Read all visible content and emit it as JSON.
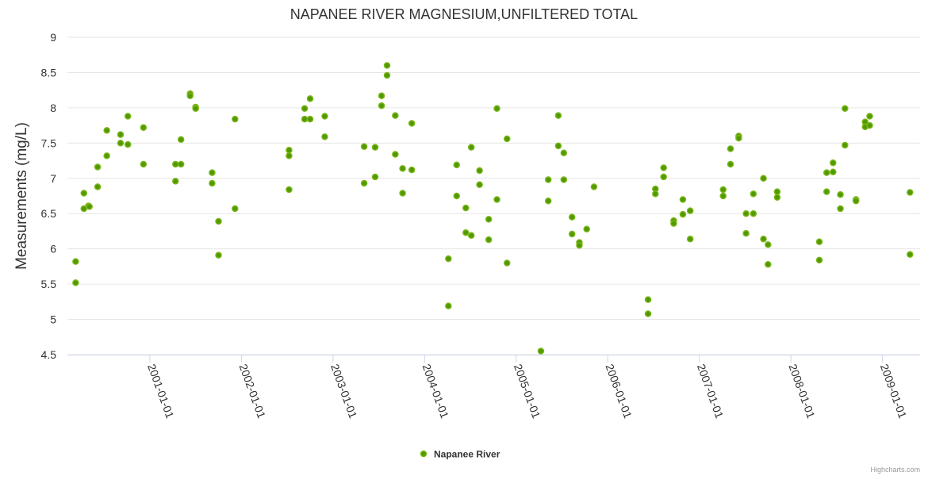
{
  "chart_data": {
    "type": "scatter",
    "title": "NAPANEE RIVER MAGNESIUM,UNFILTERED TOTAL",
    "xlabel": "",
    "ylabel": "Measurements (mg/L)",
    "xlim": [
      2000.1,
      2009.41
    ],
    "ylim": [
      4.5,
      9
    ],
    "yticks": [
      "4.5",
      "5",
      "5.5",
      "6",
      "6.5",
      "7",
      "7.5",
      "8",
      "8.5",
      "9"
    ],
    "xticks": [
      {
        "year": 2001,
        "label": "2001-01-01"
      },
      {
        "year": 2002,
        "label": "2002-01-01"
      },
      {
        "year": 2003,
        "label": "2003-01-01"
      },
      {
        "year": 2004,
        "label": "2004-01-01"
      },
      {
        "year": 2005,
        "label": "2005-01-01"
      },
      {
        "year": 2006,
        "label": "2006-01-01"
      },
      {
        "year": 2007,
        "label": "2007-01-01"
      },
      {
        "year": 2008,
        "label": "2008-01-01"
      },
      {
        "year": 2009,
        "label": "2009-01-01"
      }
    ],
    "grid": true,
    "legend_position": "bottom-center",
    "series": [
      {
        "name": "Napanee River",
        "color": "#4f9a00",
        "border_color": "#7cb518",
        "points": [
          [
            2000.19,
            5.82
          ],
          [
            2000.19,
            5.52
          ],
          [
            2000.28,
            6.79
          ],
          [
            2000.28,
            6.57
          ],
          [
            2000.33,
            6.61
          ],
          [
            2000.34,
            6.6
          ],
          [
            2000.43,
            7.16
          ],
          [
            2000.43,
            6.88
          ],
          [
            2000.53,
            7.68
          ],
          [
            2000.53,
            7.32
          ],
          [
            2000.68,
            7.62
          ],
          [
            2000.68,
            7.5
          ],
          [
            2000.76,
            7.88
          ],
          [
            2000.76,
            7.48
          ],
          [
            2000.93,
            7.72
          ],
          [
            2000.93,
            7.2
          ],
          [
            2001.28,
            7.2
          ],
          [
            2001.28,
            6.96
          ],
          [
            2001.34,
            7.55
          ],
          [
            2001.34,
            7.2
          ],
          [
            2001.44,
            8.2
          ],
          [
            2001.44,
            8.17
          ],
          [
            2001.5,
            8.01
          ],
          [
            2001.5,
            7.99
          ],
          [
            2001.68,
            7.08
          ],
          [
            2001.68,
            6.93
          ],
          [
            2001.75,
            6.39
          ],
          [
            2001.75,
            5.91
          ],
          [
            2001.93,
            7.84
          ],
          [
            2001.93,
            6.57
          ],
          [
            2002.52,
            7.4
          ],
          [
            2002.52,
            7.32
          ],
          [
            2002.52,
            6.84
          ],
          [
            2002.69,
            7.99
          ],
          [
            2002.69,
            7.84
          ],
          [
            2002.75,
            8.13
          ],
          [
            2002.75,
            7.84
          ],
          [
            2002.91,
            7.88
          ],
          [
            2002.91,
            7.59
          ],
          [
            2003.34,
            7.45
          ],
          [
            2003.34,
            6.93
          ],
          [
            2003.46,
            7.44
          ],
          [
            2003.46,
            7.02
          ],
          [
            2003.53,
            8.17
          ],
          [
            2003.53,
            8.03
          ],
          [
            2003.59,
            8.6
          ],
          [
            2003.59,
            8.46
          ],
          [
            2003.68,
            7.89
          ],
          [
            2003.68,
            7.34
          ],
          [
            2003.76,
            7.14
          ],
          [
            2003.76,
            6.79
          ],
          [
            2003.86,
            7.78
          ],
          [
            2003.86,
            7.12
          ],
          [
            2004.26,
            5.86
          ],
          [
            2004.26,
            5.19
          ],
          [
            2004.35,
            7.19
          ],
          [
            2004.35,
            6.75
          ],
          [
            2004.45,
            6.58
          ],
          [
            2004.45,
            6.23
          ],
          [
            2004.51,
            7.44
          ],
          [
            2004.51,
            6.19
          ],
          [
            2004.6,
            7.11
          ],
          [
            2004.6,
            6.91
          ],
          [
            2004.7,
            6.42
          ],
          [
            2004.7,
            6.13
          ],
          [
            2004.79,
            7.99
          ],
          [
            2004.79,
            6.7
          ],
          [
            2004.9,
            7.56
          ],
          [
            2004.9,
            5.8
          ],
          [
            2005.27,
            4.55
          ],
          [
            2005.35,
            6.98
          ],
          [
            2005.35,
            6.68
          ],
          [
            2005.46,
            7.89
          ],
          [
            2005.46,
            7.46
          ],
          [
            2005.52,
            7.36
          ],
          [
            2005.52,
            6.98
          ],
          [
            2005.61,
            6.45
          ],
          [
            2005.61,
            6.21
          ],
          [
            2005.69,
            6.09
          ],
          [
            2005.69,
            6.05
          ],
          [
            2005.77,
            6.28
          ],
          [
            2005.85,
            6.88
          ],
          [
            2006.44,
            5.28
          ],
          [
            2006.44,
            5.08
          ],
          [
            2006.52,
            6.85
          ],
          [
            2006.52,
            6.78
          ],
          [
            2006.61,
            7.15
          ],
          [
            2006.61,
            7.02
          ],
          [
            2006.72,
            6.4
          ],
          [
            2006.72,
            6.36
          ],
          [
            2006.82,
            6.7
          ],
          [
            2006.82,
            6.49
          ],
          [
            2006.9,
            6.54
          ],
          [
            2006.9,
            6.14
          ],
          [
            2007.26,
            6.84
          ],
          [
            2007.26,
            6.75
          ],
          [
            2007.34,
            7.42
          ],
          [
            2007.34,
            7.2
          ],
          [
            2007.43,
            7.6
          ],
          [
            2007.43,
            7.57
          ],
          [
            2007.51,
            6.5
          ],
          [
            2007.51,
            6.22
          ],
          [
            2007.59,
            6.78
          ],
          [
            2007.59,
            6.5
          ],
          [
            2007.7,
            7.0
          ],
          [
            2007.7,
            6.14
          ],
          [
            2007.75,
            6.06
          ],
          [
            2007.75,
            5.78
          ],
          [
            2007.85,
            6.81
          ],
          [
            2007.85,
            6.73
          ],
          [
            2008.31,
            6.1
          ],
          [
            2008.31,
            5.84
          ],
          [
            2008.39,
            7.08
          ],
          [
            2008.39,
            6.81
          ],
          [
            2008.46,
            7.22
          ],
          [
            2008.46,
            7.09
          ],
          [
            2008.54,
            6.77
          ],
          [
            2008.54,
            6.57
          ],
          [
            2008.59,
            7.99
          ],
          [
            2008.59,
            7.47
          ],
          [
            2008.71,
            6.7
          ],
          [
            2008.71,
            6.68
          ],
          [
            2008.81,
            7.8
          ],
          [
            2008.81,
            7.73
          ],
          [
            2008.86,
            7.88
          ],
          [
            2008.86,
            7.75
          ],
          [
            2009.3,
            6.8
          ],
          [
            2009.3,
            5.92
          ]
        ]
      }
    ]
  },
  "credits": "Highcharts.com"
}
